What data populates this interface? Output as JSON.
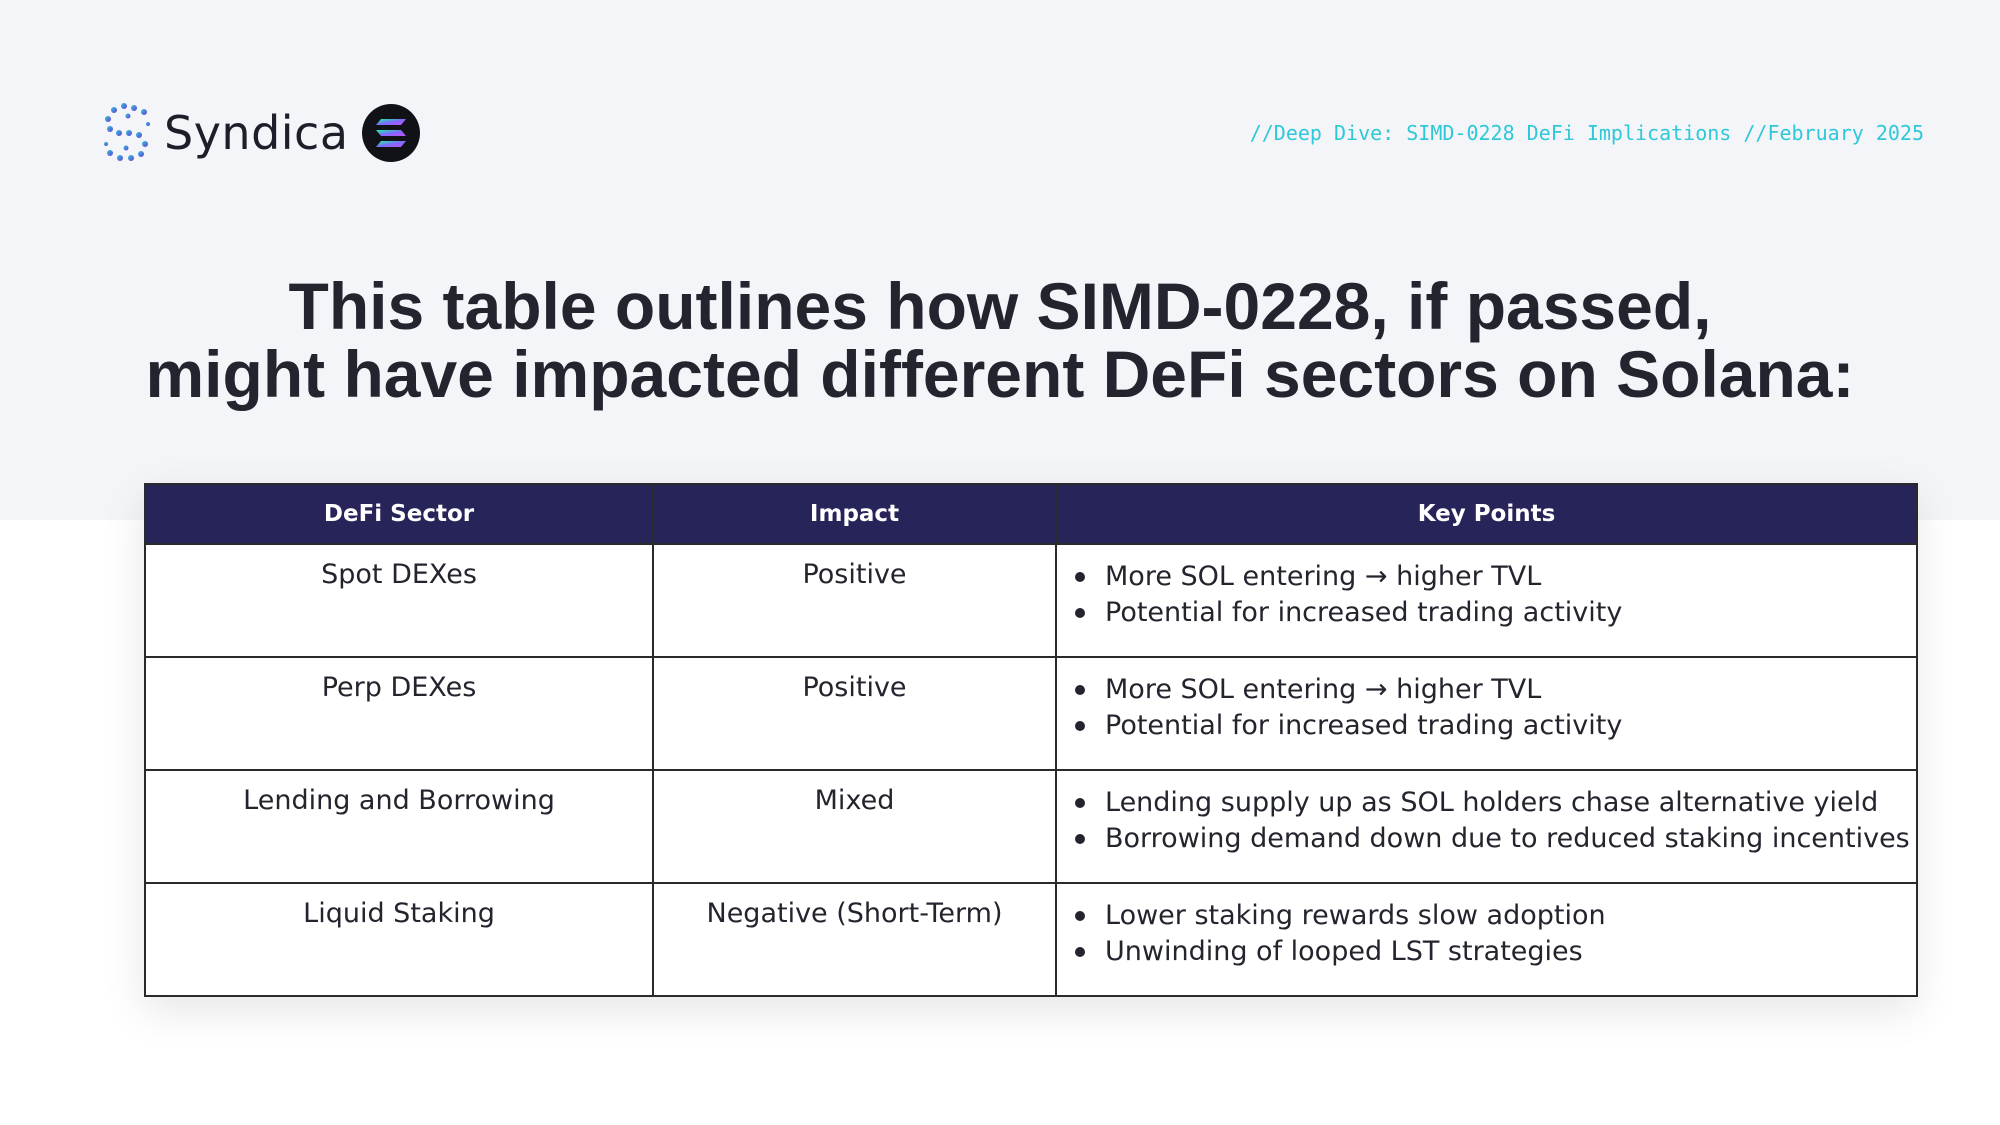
{
  "brand": {
    "name": "Syndica",
    "logo_icon": "syndica-s-logo-icon",
    "partner_icon": "solana-logo-icon",
    "colors": {
      "accent_cyan": "#2ec8d8",
      "accent_purple": "#9a45ff",
      "header_navy": "#272459"
    }
  },
  "header": {
    "tagline": "//Deep Dive: SIMD-0228 DeFi Implications //February 2025"
  },
  "headline": {
    "line1": "This table outlines how SIMD-0228, if passed,",
    "line2": "might have impacted different DeFi sectors on Solana:"
  },
  "table": {
    "columns": [
      "DeFi Sector",
      "Impact",
      "Key Points"
    ],
    "rows": [
      {
        "sector": "Spot DEXes",
        "impact": "Positive",
        "points": [
          "More SOL entering → higher TVL",
          "Potential for increased trading activity"
        ]
      },
      {
        "sector": "Perp DEXes",
        "impact": "Positive",
        "points": [
          "More SOL entering → higher TVL",
          "Potential for increased trading activity"
        ]
      },
      {
        "sector": "Lending and Borrowing",
        "impact": "Mixed",
        "points": [
          "Lending supply up as SOL holders chase alternative yield",
          "Borrowing demand down due to reduced staking incentives"
        ]
      },
      {
        "sector": "Liquid Staking",
        "impact": "Negative (Short-Term)",
        "points": [
          "Lower staking rewards slow adoption",
          "Unwinding of looped LST strategies"
        ]
      }
    ]
  }
}
